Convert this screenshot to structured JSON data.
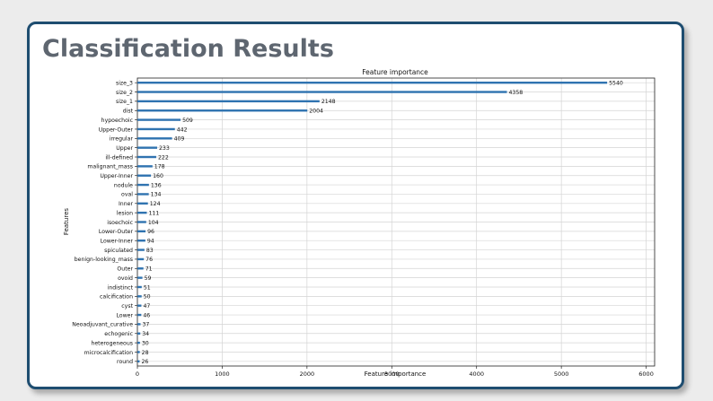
{
  "slide": {
    "title": "Classification Results"
  },
  "chart_data": {
    "type": "bar",
    "orientation": "horizontal",
    "title": "Feature importance",
    "xlabel": "Feature importance",
    "ylabel": "Features",
    "xlim": [
      0,
      6100
    ],
    "xticks": [
      0,
      1000,
      2000,
      3000,
      4000,
      5000,
      6000
    ],
    "grid": true,
    "data_labels": true,
    "bar_color": "#2f73b0",
    "categories": [
      "size_3",
      "size_2",
      "size_1",
      "dist",
      "hypoechoic",
      "Upper-Outer",
      "irregular",
      "Upper",
      "ill-defined",
      "malignant_mass",
      "Upper-Inner",
      "nodule",
      "oval",
      "Inner",
      "lesion",
      "isoechoic",
      "Lower-Outer",
      "Lower-Inner",
      "spiculated",
      "benign-looking_mass",
      "Outer",
      "ovoid",
      "indistinct",
      "calcification",
      "cyst",
      "Lower",
      "Neoadjuvant_curative",
      "echogenic",
      "heterogeneous",
      "microcalcification",
      "round"
    ],
    "values": [
      5540,
      4358,
      2148,
      2004,
      509,
      442,
      409,
      233,
      222,
      178,
      160,
      136,
      134,
      124,
      111,
      104,
      96,
      94,
      83,
      76,
      71,
      59,
      51,
      50,
      47,
      46,
      37,
      34,
      30,
      28,
      26
    ]
  }
}
